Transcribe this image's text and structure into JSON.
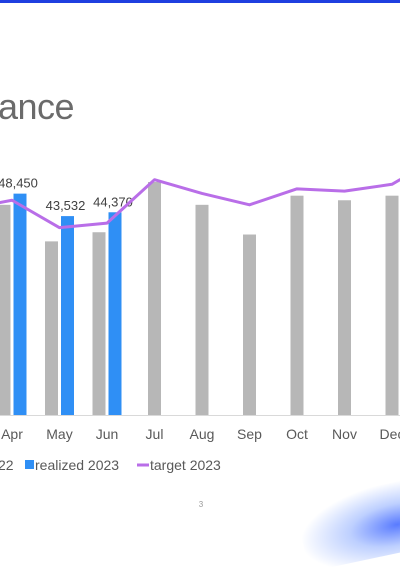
{
  "slide": {
    "title": "ance",
    "page_number": "3"
  },
  "colors": {
    "realized_2022": "#b7b7b7",
    "realized_2023": "#2f8ff5",
    "target_2023": "#b96ee8",
    "top_bar": "#1f3fe0"
  },
  "chart_data": {
    "type": "bar",
    "categories": [
      "Apr",
      "May",
      "Jun",
      "Jul",
      "Aug",
      "Sep",
      "Oct",
      "Nov",
      "Dec"
    ],
    "series": [
      {
        "name": "22",
        "kind": "bar",
        "values": [
          46000,
          38000,
          40000,
          51000,
          46000,
          39500,
          48000,
          47000,
          48000
        ]
      },
      {
        "name": "realized 2023",
        "kind": "bar",
        "values": [
          48450,
          43532,
          44370,
          null,
          null,
          null,
          null,
          null,
          null
        ],
        "data_labels": [
          "48,450",
          "43,532",
          "44,370"
        ]
      },
      {
        "name": "target 2023",
        "kind": "line",
        "values": [
          47000,
          41000,
          42000,
          51500,
          48500,
          46000,
          49500,
          49000,
          50500
        ]
      }
    ],
    "ylim": [
      0,
      58000
    ],
    "grid": false,
    "legend": "bottom"
  }
}
